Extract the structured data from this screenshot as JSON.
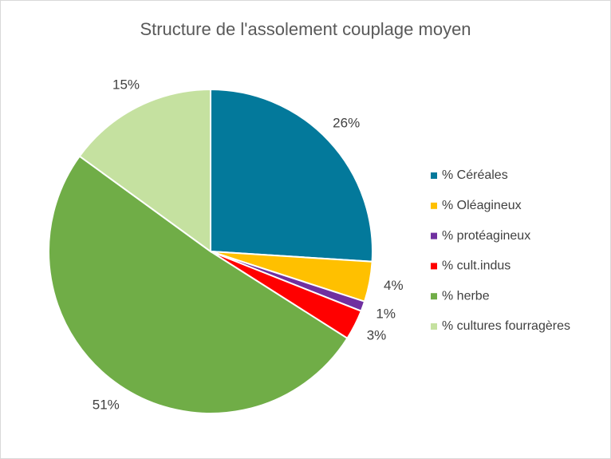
{
  "chart_data": {
    "type": "pie",
    "title": "Structure de l'assolement couplage moyen",
    "categories": [
      "% Céréales",
      "% Oléagineux",
      "% protéagineux",
      "% cult.indus",
      "% herbe",
      "% cultures fourragères"
    ],
    "values": [
      26,
      4,
      1,
      3,
      51,
      15
    ],
    "value_labels": [
      "26%",
      "4%",
      "1%",
      "3%",
      "51%",
      "15%"
    ],
    "colors": [
      "#03799b",
      "#ffc000",
      "#7030a0",
      "#ff0000",
      "#70ad47",
      "#c5e1a0"
    ],
    "legend": "right"
  }
}
